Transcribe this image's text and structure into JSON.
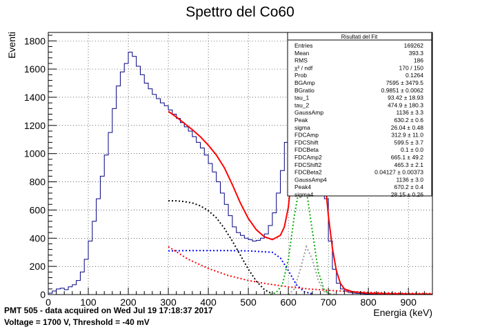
{
  "chart_data": {
    "type": "line",
    "title": "Spettro del Co60",
    "xlabel": "Energia (keV)",
    "ylabel": "Eventi",
    "xlim": [
      0,
      960
    ],
    "ylim": [
      0,
      1860
    ],
    "grid": true,
    "x_ticks": [
      0,
      100,
      200,
      300,
      400,
      500,
      600,
      700,
      800,
      900
    ],
    "y_ticks": [
      0,
      200,
      400,
      600,
      800,
      1000,
      1200,
      1400,
      1600,
      1800
    ],
    "histogram": {
      "color": "#000080",
      "x": [
        0,
        10,
        20,
        30,
        40,
        50,
        60,
        70,
        80,
        90,
        100,
        110,
        120,
        130,
        140,
        150,
        160,
        170,
        180,
        190,
        200,
        210,
        220,
        230,
        240,
        250,
        260,
        270,
        280,
        290,
        300,
        310,
        320,
        330,
        340,
        350,
        360,
        370,
        380,
        390,
        400,
        410,
        420,
        430,
        440,
        450,
        460,
        470,
        480,
        490,
        500,
        510,
        520,
        530,
        540,
        550,
        560,
        570,
        580,
        590,
        600,
        610,
        620,
        630,
        640,
        650,
        660,
        670,
        680,
        690,
        700,
        710,
        720,
        730,
        740,
        750,
        760,
        770,
        780,
        790,
        800,
        820,
        850,
        900,
        950
      ],
      "y": [
        10,
        25,
        40,
        45,
        35,
        55,
        70,
        100,
        160,
        250,
        380,
        520,
        680,
        840,
        990,
        1150,
        1320,
        1480,
        1580,
        1640,
        1720,
        1690,
        1620,
        1560,
        1500,
        1460,
        1420,
        1390,
        1360,
        1340,
        1310,
        1280,
        1250,
        1220,
        1190,
        1160,
        1120,
        1080,
        1040,
        990,
        930,
        870,
        800,
        720,
        640,
        560,
        480,
        440,
        420,
        400,
        390,
        380,
        385,
        400,
        430,
        490,
        580,
        720,
        880,
        1080,
        1300,
        1500,
        1660,
        1730,
        1740,
        1700,
        1560,
        1320,
        1000,
        680,
        380,
        180,
        80,
        40,
        25,
        15,
        10,
        8,
        6,
        5,
        4,
        3,
        3,
        2,
        2
      ]
    },
    "series": [
      {
        "color": "#ff0000",
        "style": "solid",
        "x": [
          300,
          320,
          340,
          360,
          380,
          400,
          420,
          440,
          460,
          480,
          500,
          520,
          540,
          560,
          580,
          590,
          600,
          610,
          620,
          630,
          640,
          650,
          660,
          670,
          680,
          690,
          700,
          710,
          720,
          730,
          740,
          760,
          800,
          850,
          900,
          960
        ],
        "y": [
          1300,
          1260,
          1215,
          1170,
          1120,
          1060,
          990,
          900,
          780,
          650,
          540,
          460,
          410,
          390,
          420,
          480,
          620,
          900,
          1240,
          1550,
          1720,
          1740,
          1640,
          1430,
          1160,
          860,
          560,
          330,
          170,
          80,
          40,
          20,
          10,
          6,
          4,
          3
        ]
      },
      {
        "color": "#ff0000",
        "style": "dotted",
        "x": [
          300,
          350,
          400,
          450,
          500,
          550,
          600,
          650,
          700,
          750,
          800,
          850,
          900,
          960
        ],
        "y": [
          340,
          250,
          185,
          135,
          100,
          75,
          55,
          40,
          30,
          22,
          16,
          12,
          9,
          7
        ]
      },
      {
        "color": "#000000",
        "style": "dotted",
        "x": [
          300,
          320,
          340,
          360,
          380,
          400,
          420,
          440,
          460,
          480,
          500,
          520,
          540,
          560
        ],
        "y": [
          665,
          665,
          660,
          650,
          630,
          595,
          545,
          470,
          380,
          280,
          180,
          95,
          35,
          5
        ]
      },
      {
        "color": "#0000ff",
        "style": "dotted",
        "x": [
          300,
          350,
          400,
          450,
          500,
          560,
          580,
          600,
          620,
          640,
          660
        ],
        "y": [
          310,
          312,
          312,
          312,
          310,
          300,
          260,
          170,
          70,
          20,
          5
        ]
      },
      {
        "color": "#00aa00",
        "style": "dotted",
        "x": [
          555,
          570,
          585,
          600,
          615,
          630,
          645,
          660,
          675,
          690,
          705
        ],
        "y": [
          0,
          15,
          70,
          250,
          560,
          800,
          740,
          450,
          160,
          30,
          0
        ]
      },
      {
        "color": "#999999",
        "style": "dotted",
        "x": [
          600,
          615,
          630,
          645,
          660,
          675,
          690,
          705,
          720
        ],
        "y": [
          0,
          40,
          180,
          340,
          250,
          100,
          20,
          5,
          0
        ]
      }
    ]
  },
  "stats_box": {
    "title": "Risultati del Fit",
    "rows": [
      {
        "label": "Entries",
        "value": "169262"
      },
      {
        "label": "Mean",
        "value": "393.3"
      },
      {
        "label": "RMS",
        "value": "186"
      },
      {
        "label": "χ² / ndf",
        "value": "170 / 150"
      },
      {
        "label": "Prob",
        "value": "0.1264"
      },
      {
        "label": "BGAmp",
        "value": "7595 ± 3479.5"
      },
      {
        "label": "BGratio",
        "value": "0.9851 ± 0.0062"
      },
      {
        "label": "tau_1",
        "value": "93.42 ± 18.93"
      },
      {
        "label": "tau_2",
        "value": "474.9 ± 180.3"
      },
      {
        "label": "GaussAmp",
        "value": "1136 ± 3.3"
      },
      {
        "label": "Peak",
        "value": "630.2 ± 0.6"
      },
      {
        "label": "sigma",
        "value": "26.04 ± 0.48"
      },
      {
        "label": "FDCAmp",
        "value": "312.9 ± 11.0"
      },
      {
        "label": "FDCShift",
        "value": "599.5 ± 3.7"
      },
      {
        "label": "FDCBeta",
        "value": "0.1 ± 0.0"
      },
      {
        "label": "FDCAmp2",
        "value": "665.1 ± 49.2"
      },
      {
        "label": "FDCShift2",
        "value": "465.3 ± 2.1"
      },
      {
        "label": "FDCBeta2",
        "value": "0.04127 ± 0.00373"
      },
      {
        "label": "GaussAmp4",
        "value": "1136 ± 3.0"
      },
      {
        "label": "Peak4",
        "value": "670.2 ± 0.4"
      },
      {
        "label": "sigma4",
        "value": "28.15 ± 0.26"
      }
    ]
  },
  "caption": {
    "line1": "PMT 505 - data acquired on Wed Jul 19 17:18:37 2017",
    "line2": "Voltage = 1700 V, Threshold = -40 mV"
  }
}
